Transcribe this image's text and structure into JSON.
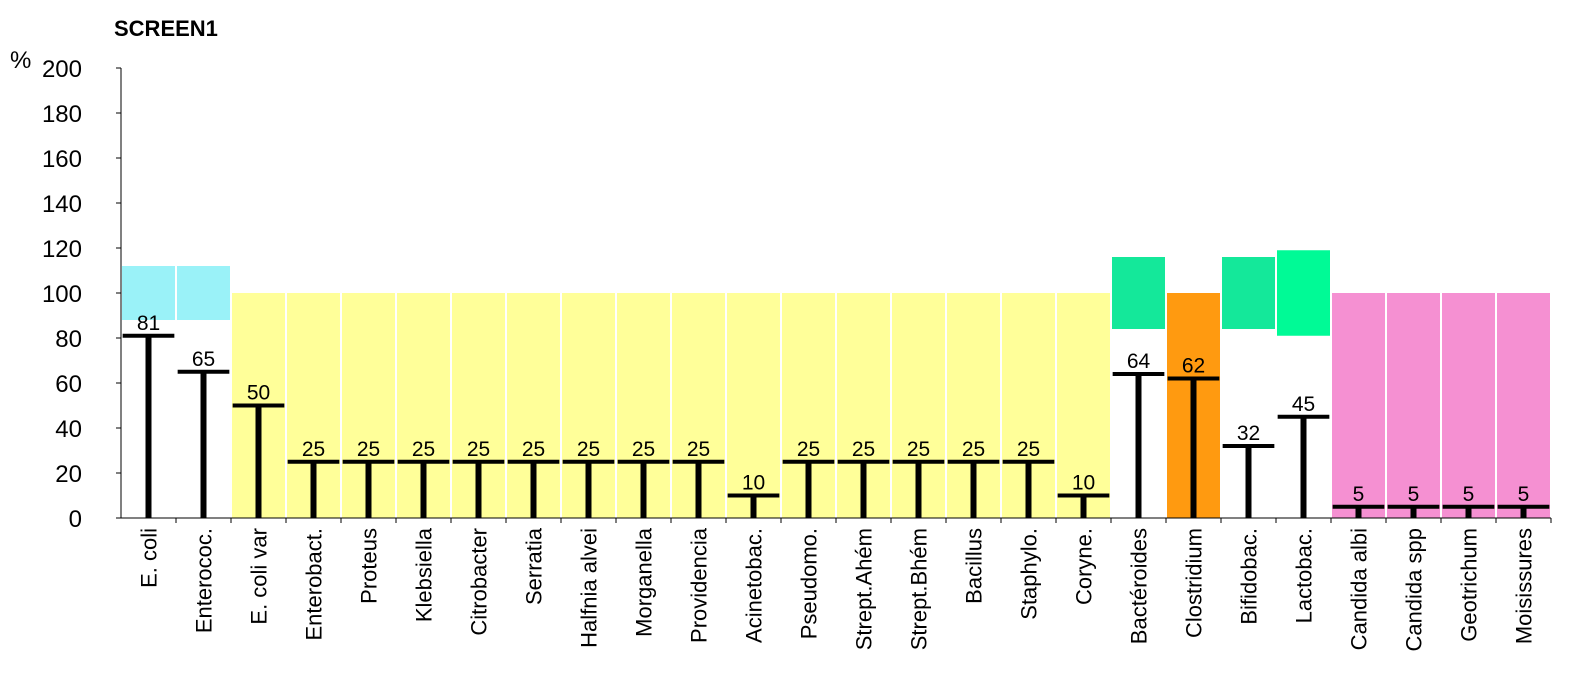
{
  "chart_data": {
    "type": "range-bar",
    "title": "SCREEN1",
    "y_label": "%",
    "categories": [
      "E. coli",
      "Enterococ.",
      "E. coli var",
      "Enterobact.",
      "Proteus",
      "Klebsiella",
      "Citrobacter",
      "Serratia",
      "Halfnia alvei",
      "Morganella",
      "Providencia",
      "Acinetobac.",
      "Pseudomo.",
      "Strept.Ahém",
      "Strept.Bhém",
      "Bacillus",
      "Staphylo.",
      "Coryne.",
      "Bactéroides",
      "Clostridium",
      "Bifidobac.",
      "Lactobac.",
      "Candida albi",
      "Candida spp",
      "Geotrichum",
      "Moisissures"
    ],
    "values": [
      81,
      65,
      50,
      25,
      25,
      25,
      25,
      25,
      25,
      25,
      25,
      10,
      25,
      25,
      25,
      25,
      25,
      10,
      64,
      62,
      32,
      45,
      5,
      5,
      5,
      5
    ],
    "color": "#000000",
    "range_low": [
      88,
      88,
      0,
      0,
      0,
      0,
      0,
      0,
      0,
      0,
      0,
      0,
      0,
      0,
      0,
      0,
      0,
      0,
      84,
      0,
      84,
      81,
      0,
      0,
      0,
      0
    ],
    "range_high": [
      112,
      112,
      100,
      100,
      100,
      100,
      100,
      100,
      100,
      100,
      100,
      100,
      100,
      100,
      100,
      100,
      100,
      100,
      116,
      100,
      116,
      119,
      100,
      100,
      100,
      100
    ],
    "range_colors": [
      "#9af2f8",
      "#9af2f8",
      "#ffff99",
      "#ffff99",
      "#ffff99",
      "#ffff99",
      "#ffff99",
      "#ffff99",
      "#ffff99",
      "#ffff99",
      "#ffff99",
      "#ffff99",
      "#ffff99",
      "#ffff99",
      "#ffff99",
      "#ffff99",
      "#ffff99",
      "#ffff99",
      "#14e89a",
      "#ff9a10",
      "#14e89a",
      "#00fa96",
      "#f590d2",
      "#f590d2",
      "#f590d2",
      "#f590d2"
    ],
    "ylim": [
      0,
      200
    ],
    "yticks": [
      0,
      20,
      40,
      60,
      80,
      100,
      120,
      140,
      160,
      180,
      200
    ],
    "grid": false
  }
}
